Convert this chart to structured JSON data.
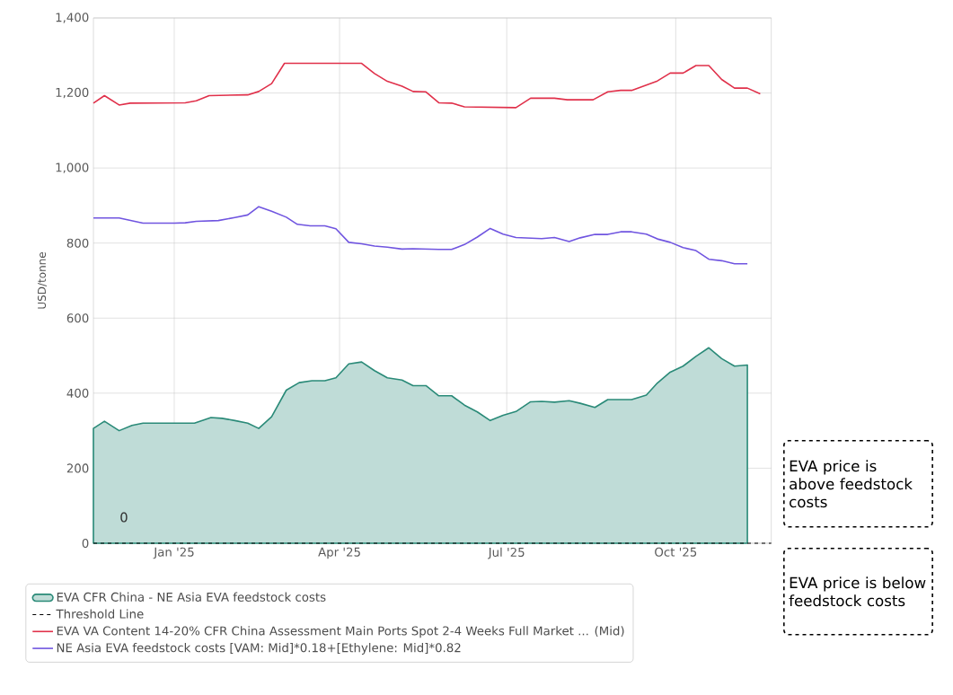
{
  "chart_data": {
    "type": "line",
    "ylabel": "USD/tonne",
    "xlim": [
      "2024-11-18",
      "2025-11-22"
    ],
    "ylim": [
      0,
      1400
    ],
    "xticks": [
      {
        "value": "2025-01-01",
        "label": "Jan '25"
      },
      {
        "value": "2025-04-01",
        "label": "Apr '25"
      },
      {
        "value": "2025-07-01",
        "label": "Jul '25"
      },
      {
        "value": "2025-10-01",
        "label": "Oct '25"
      }
    ],
    "yticks": [
      0,
      200,
      400,
      600,
      800,
      {
        "value": 1000,
        "label": "1,000"
      },
      {
        "value": 1200,
        "label": "1,200"
      },
      {
        "value": 1400,
        "label": "1,400"
      }
    ],
    "grid": true,
    "legend": "bottom",
    "series": [
      {
        "name": "EVA CFR China - NE Asia EVA feedstock costs",
        "type": "area",
        "color": "#2a8a78",
        "x": [
          "2024-11-18",
          "2024-11-24",
          "2024-12-02",
          "2024-12-09",
          "2024-12-15",
          "2025-01-12",
          "2025-01-21",
          "2025-01-27",
          "2025-02-03",
          "2025-02-10",
          "2025-02-16",
          "2025-02-23",
          "2025-03-03",
          "2025-03-10",
          "2025-03-17",
          "2025-03-24",
          "2025-03-30",
          "2025-04-06",
          "2025-04-13",
          "2025-04-20",
          "2025-04-27",
          "2025-05-05",
          "2025-05-11",
          "2025-05-18",
          "2025-05-25",
          "2025-06-01",
          "2025-06-08",
          "2025-06-15",
          "2025-06-22",
          "2025-06-29",
          "2025-07-06",
          "2025-07-14",
          "2025-07-20",
          "2025-07-27",
          "2025-08-04",
          "2025-08-10",
          "2025-08-18",
          "2025-08-25",
          "2025-09-07",
          "2025-09-15",
          "2025-09-21",
          "2025-09-28",
          "2025-10-05",
          "2025-10-12",
          "2025-10-19",
          "2025-10-26",
          "2025-11-02",
          "2025-11-09"
        ],
        "values": [
          306,
          325,
          300,
          314,
          320,
          320,
          335,
          333,
          327,
          320,
          306,
          337,
          408,
          428,
          433,
          433,
          441,
          478,
          483,
          460,
          441,
          435,
          420,
          420,
          393,
          393,
          368,
          350,
          327,
          341,
          351,
          377,
          378,
          376,
          380,
          373,
          362,
          383,
          383,
          395,
          427,
          456,
          472,
          498,
          521,
          492,
          472,
          475
        ]
      },
      {
        "name": "EVA VA Content 14-20% CFR China Assessment Main Ports Spot 2-4 Weeks Full Market ... (Mid)",
        "color": "#e0304a",
        "x": [
          "2024-11-18",
          "2024-11-24",
          "2024-12-02",
          "2024-12-08",
          "2025-01-07",
          "2025-01-13",
          "2025-01-20",
          "2025-02-10",
          "2025-02-16",
          "2025-02-23",
          "2025-03-02",
          "2025-04-13",
          "2025-04-20",
          "2025-04-27",
          "2025-05-05",
          "2025-05-11",
          "2025-05-18",
          "2025-05-25",
          "2025-06-01",
          "2025-06-08",
          "2025-07-06",
          "2025-07-14",
          "2025-07-27",
          "2025-08-03",
          "2025-08-17",
          "2025-08-25",
          "2025-09-01",
          "2025-09-07",
          "2025-09-21",
          "2025-09-28",
          "2025-10-05",
          "2025-10-12",
          "2025-10-19",
          "2025-10-26",
          "2025-11-02",
          "2025-11-09",
          "2025-11-16"
        ],
        "values": [
          1173,
          1193,
          1168,
          1173,
          1174,
          1179,
          1193,
          1195,
          1204,
          1225,
          1279,
          1279,
          1252,
          1231,
          1218,
          1204,
          1203,
          1174,
          1173,
          1163,
          1161,
          1186,
          1186,
          1182,
          1182,
          1203,
          1207,
          1207,
          1232,
          1253,
          1253,
          1273,
          1273,
          1236,
          1213,
          1213,
          1198
        ]
      },
      {
        "name": "NE Asia EVA feedstock costs [VAM: Mid]*0.18+[Ethylene: Mid]*0.82",
        "color": "#7055e0",
        "x": [
          "2024-11-18",
          "2024-12-02",
          "2024-12-15",
          "2025-01-01",
          "2025-01-07",
          "2025-01-13",
          "2025-01-25",
          "2025-02-03",
          "2025-02-10",
          "2025-02-16",
          "2025-02-23",
          "2025-03-03",
          "2025-03-09",
          "2025-03-16",
          "2025-03-24",
          "2025-03-30",
          "2025-04-06",
          "2025-04-13",
          "2025-04-20",
          "2025-04-27",
          "2025-05-05",
          "2025-05-11",
          "2025-05-25",
          "2025-06-01",
          "2025-06-08",
          "2025-06-15",
          "2025-06-22",
          "2025-06-29",
          "2025-07-06",
          "2025-07-20",
          "2025-07-27",
          "2025-08-04",
          "2025-08-10",
          "2025-08-18",
          "2025-08-25",
          "2025-09-01",
          "2025-09-07",
          "2025-09-15",
          "2025-09-21",
          "2025-09-28",
          "2025-10-05",
          "2025-10-12",
          "2025-10-19",
          "2025-10-26",
          "2025-11-02",
          "2025-11-09"
        ],
        "values": [
          867,
          867,
          853,
          853,
          854,
          858,
          860,
          868,
          875,
          897,
          885,
          869,
          850,
          846,
          846,
          838,
          802,
          798,
          792,
          789,
          784,
          785,
          783,
          783,
          796,
          816,
          839,
          824,
          815,
          812,
          815,
          804,
          814,
          823,
          823,
          830,
          830,
          824,
          811,
          802,
          788,
          780,
          757,
          753,
          745,
          745
        ]
      }
    ],
    "ref_lines": [
      {
        "axis": "y",
        "value": 0,
        "label": "Threshold Line",
        "color": "#000000",
        "line_style": "dashed"
      }
    ],
    "annotations": [
      "EVA price is above feedstock costs",
      "EVA price is below feedstock costs",
      {
        "text": "0",
        "y": 0
      }
    ]
  }
}
